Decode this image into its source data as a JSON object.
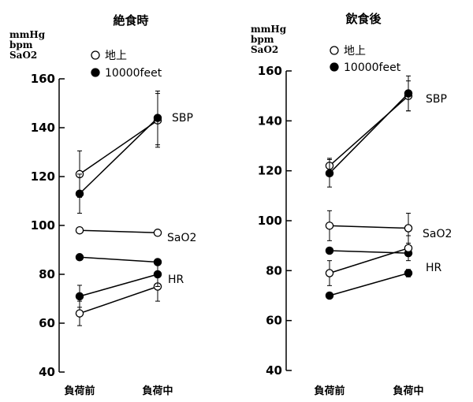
{
  "chart_data": [
    {
      "type": "line",
      "title": "絶食時",
      "units": [
        "mmHg",
        "bpm",
        "SaO2"
      ],
      "categories": [
        "負荷前",
        "負荷中"
      ],
      "ylim": [
        40,
        160
      ],
      "yticks": [
        40,
        60,
        80,
        100,
        120,
        140,
        160
      ],
      "legend": [
        {
          "label": "地上",
          "marker": "open"
        },
        {
          "label": "10000feet",
          "marker": "filled"
        }
      ],
      "series_labels": [
        "SBP",
        "SaO2",
        "HR"
      ],
      "series": [
        {
          "name": "SBP 地上",
          "marker": "open",
          "values": [
            121,
            143
          ],
          "err": [
            9.5,
            11
          ]
        },
        {
          "name": "SBP 10000feet",
          "marker": "filled",
          "values": [
            113,
            144
          ],
          "err": [
            8,
            11
          ]
        },
        {
          "name": "SaO2 地上",
          "marker": "open",
          "values": [
            98,
            97
          ],
          "err": [
            0,
            0
          ]
        },
        {
          "name": "SaO2 10000feet",
          "marker": "filled",
          "values": [
            87,
            85
          ],
          "err": [
            0,
            0
          ]
        },
        {
          "name": "HR 地上",
          "marker": "open",
          "values": [
            64,
            75
          ],
          "err": [
            5,
            6
          ]
        },
        {
          "name": "HR 10000feet",
          "marker": "filled",
          "values": [
            71,
            80
          ],
          "err": [
            4.5,
            5
          ]
        }
      ]
    },
    {
      "type": "line",
      "title": "飲食後",
      "units": [
        "mmHg",
        "bpm",
        "SaO2"
      ],
      "categories": [
        "負荷前",
        "負荷中"
      ],
      "ylim": [
        40,
        160
      ],
      "yticks": [
        40,
        60,
        80,
        100,
        120,
        140,
        160
      ],
      "legend": [
        {
          "label": "地上",
          "marker": "open"
        },
        {
          "label": "10000feet",
          "marker": "filled"
        }
      ],
      "series_labels": [
        "SBP",
        "SaO2",
        "HR"
      ],
      "series": [
        {
          "name": "SBP 地上",
          "marker": "open",
          "values": [
            122,
            150
          ],
          "err": [
            3,
            6
          ]
        },
        {
          "name": "SBP 10000feet",
          "marker": "filled",
          "values": [
            119,
            151
          ],
          "err": [
            5.5,
            7
          ]
        },
        {
          "name": "SaO2 地上",
          "marker": "open",
          "values": [
            98,
            97
          ],
          "err": [
            6,
            6
          ]
        },
        {
          "name": "SaO2 10000feet",
          "marker": "filled",
          "values": [
            88,
            87
          ],
          "err": [
            0,
            0
          ]
        },
        {
          "name": "HR 地上",
          "marker": "open",
          "values": [
            79,
            89
          ],
          "err": [
            5,
            5
          ]
        },
        {
          "name": "HR 10000feet",
          "marker": "filled",
          "values": [
            70,
            79
          ],
          "err": [
            1,
            1.5
          ]
        }
      ]
    }
  ]
}
